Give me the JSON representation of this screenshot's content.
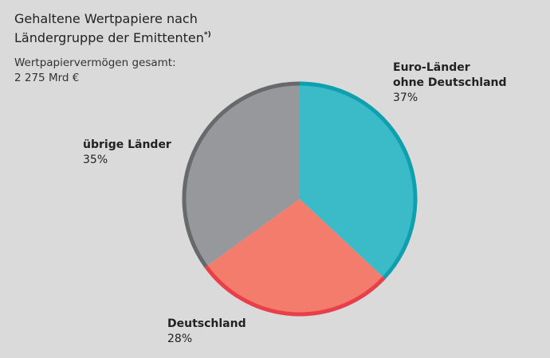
{
  "chart_data": {
    "type": "pie",
    "title": [
      "Gehaltene Wertpapiere nach",
      "Ländergruppe der Emittenten"
    ],
    "title_note": "*)",
    "subtitle": [
      "Wertpapiervermögen gesamt:",
      "2 275 Mrd €"
    ],
    "categories": [
      [
        "Euro-Länder",
        "ohne Deutschland"
      ],
      [
        "Deutschland"
      ],
      [
        "übrige Länder"
      ]
    ],
    "values": [
      37,
      28,
      35
    ],
    "value_labels": [
      "37%",
      "28%",
      "35%"
    ],
    "colors": [
      "#3bbac8",
      "#f47c6d",
      "#97989b"
    ],
    "edge_colors": [
      "#0fa0af",
      "#e8404a",
      "#68696b"
    ]
  }
}
